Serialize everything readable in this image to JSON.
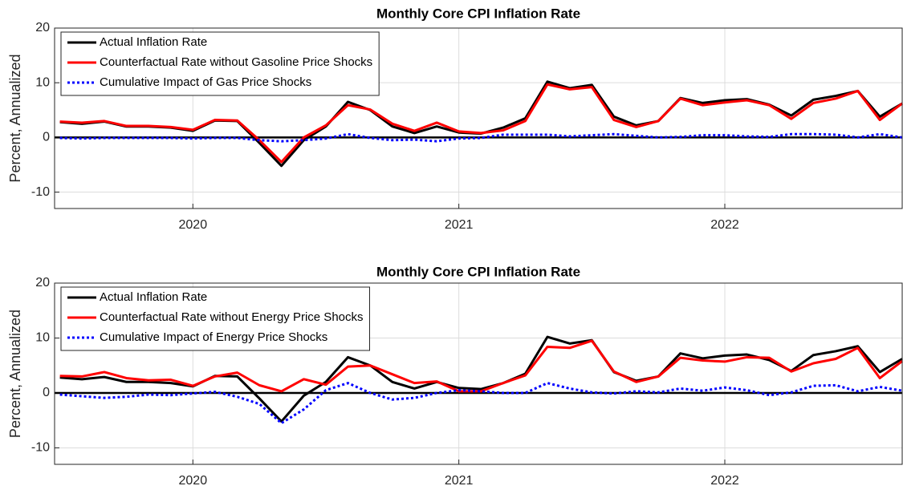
{
  "chart_data": [
    {
      "type": "line",
      "title": "Monthly Core CPI Inflation Rate",
      "y_label": "Percent, Annualized",
      "x": [
        2019.5,
        2019.583,
        2019.667,
        2019.75,
        2019.833,
        2019.917,
        2020,
        2020.083,
        2020.167,
        2020.25,
        2020.333,
        2020.417,
        2020.5,
        2020.583,
        2020.667,
        2020.75,
        2020.833,
        2020.917,
        2021,
        2021.083,
        2021.167,
        2021.25,
        2021.333,
        2021.417,
        2021.5,
        2021.583,
        2021.667,
        2021.75,
        2021.833,
        2021.917,
        2022,
        2022.083,
        2022.167,
        2022.25,
        2022.333,
        2022.417,
        2022.5,
        2022.583,
        2022.667
      ],
      "xlim": [
        2019.48,
        2022.667
      ],
      "xticks": [
        2020,
        2021,
        2022
      ],
      "ylim": [
        -13,
        20
      ],
      "yticks": [
        -10,
        0,
        10,
        20
      ],
      "grid": true,
      "zero_line": true,
      "legend": "upper-left",
      "series": [
        {
          "name": "Actual Inflation Rate",
          "color": "#000000",
          "style": "solid",
          "values": [
            2.8,
            2.5,
            2.9,
            2.0,
            2.0,
            1.8,
            1.2,
            3.1,
            3.0,
            -1.0,
            -5.2,
            -0.5,
            2.0,
            6.5,
            5.0,
            2.0,
            0.8,
            2.0,
            0.9,
            0.7,
            1.8,
            3.5,
            10.2,
            9.0,
            9.6,
            3.8,
            2.2,
            3.0,
            7.2,
            6.3,
            6.8,
            7.0,
            6.0,
            4.0,
            6.9,
            7.6,
            8.5,
            3.8,
            6.2
          ]
        },
        {
          "name": "Counterfactual Rate without Gasoline Price Shocks",
          "color": "#ff0000",
          "style": "solid",
          "values": [
            2.9,
            2.7,
            3.0,
            2.1,
            2.1,
            1.9,
            1.4,
            3.2,
            3.1,
            -0.5,
            -4.5,
            0,
            2.2,
            5.9,
            5.1,
            2.5,
            1.2,
            2.7,
            1.1,
            0.8,
            1.3,
            3.0,
            9.7,
            8.8,
            9.2,
            3.2,
            1.9,
            3.0,
            7.1,
            5.9,
            6.4,
            6.8,
            5.9,
            3.4,
            6.3,
            7.1,
            8.5,
            3.2,
            6.2
          ]
        },
        {
          "name": "Cumulative Impact of Gas Price Shocks",
          "color": "#0000ff",
          "style": "dotted",
          "values": [
            -0.1,
            -0.2,
            -0.1,
            -0.1,
            -0.1,
            -0.1,
            -0.2,
            -0.1,
            -0.1,
            -0.5,
            -0.7,
            -0.5,
            -0.2,
            0.6,
            -0.1,
            -0.5,
            -0.4,
            -0.7,
            -0.2,
            -0.1,
            0.5,
            0.5,
            0.5,
            0.2,
            0.4,
            0.6,
            0.3,
            0,
            0.1,
            0.4,
            0.4,
            0.2,
            0.1,
            0.6,
            0.6,
            0.5,
            0,
            0.6,
            0
          ]
        }
      ]
    },
    {
      "type": "line",
      "title": "Monthly Core CPI Inflation Rate",
      "y_label": "Percent, Annualized",
      "x": [
        2019.5,
        2019.583,
        2019.667,
        2019.75,
        2019.833,
        2019.917,
        2020,
        2020.083,
        2020.167,
        2020.25,
        2020.333,
        2020.417,
        2020.5,
        2020.583,
        2020.667,
        2020.75,
        2020.833,
        2020.917,
        2021,
        2021.083,
        2021.167,
        2021.25,
        2021.333,
        2021.417,
        2021.5,
        2021.583,
        2021.667,
        2021.75,
        2021.833,
        2021.917,
        2022,
        2022.083,
        2022.167,
        2022.25,
        2022.333,
        2022.417,
        2022.5,
        2022.583,
        2022.667
      ],
      "xlim": [
        2019.48,
        2022.667
      ],
      "xticks": [
        2020,
        2021,
        2022
      ],
      "ylim": [
        -13,
        20
      ],
      "yticks": [
        -10,
        0,
        10,
        20
      ],
      "grid": true,
      "zero_line": true,
      "legend": "upper-left",
      "series": [
        {
          "name": "Actual Inflation Rate",
          "color": "#000000",
          "style": "solid",
          "values": [
            2.8,
            2.5,
            2.9,
            2.0,
            2.0,
            1.8,
            1.2,
            3.1,
            3.0,
            -1.0,
            -5.2,
            -0.5,
            2.0,
            6.5,
            5.0,
            2.0,
            0.8,
            2.0,
            0.9,
            0.7,
            1.8,
            3.5,
            10.2,
            9.0,
            9.6,
            3.8,
            2.2,
            3.0,
            7.2,
            6.3,
            6.8,
            7.0,
            6.0,
            4.0,
            6.9,
            7.6,
            8.5,
            3.8,
            6.2
          ]
        },
        {
          "name": "Counterfactual Rate without Energy Price Shocks",
          "color": "#ff0000",
          "style": "solid",
          "values": [
            3.1,
            3.0,
            3.8,
            2.7,
            2.3,
            2.4,
            1.3,
            3.0,
            3.7,
            1.4,
            0.3,
            2.5,
            1.5,
            4.8,
            5.0,
            3.4,
            1.8,
            2.1,
            0.3,
            0.3,
            1.8,
            3.2,
            8.4,
            8.2,
            9.5,
            3.9,
            2.0,
            3.0,
            6.4,
            5.9,
            5.7,
            6.5,
            6.4,
            3.9,
            5.4,
            6.2,
            8.2,
            2.7,
            5.8
          ]
        },
        {
          "name": "Cumulative Impact of Energy Price Shocks",
          "color": "#0000ff",
          "style": "dotted",
          "values": [
            -0.3,
            -0.6,
            -0.9,
            -0.7,
            -0.3,
            -0.4,
            -0.1,
            0.2,
            -0.7,
            -2.0,
            -5.5,
            -3.0,
            0.5,
            1.8,
            0,
            -1.2,
            -0.9,
            0,
            0.5,
            0.3,
            0,
            0,
            1.8,
            0.8,
            0.1,
            -0.1,
            0.3,
            0.1,
            0.8,
            0.4,
            1.0,
            0.5,
            -0.4,
            0.1,
            1.3,
            1.4,
            0.3,
            1.1,
            0.4
          ]
        }
      ]
    }
  ]
}
